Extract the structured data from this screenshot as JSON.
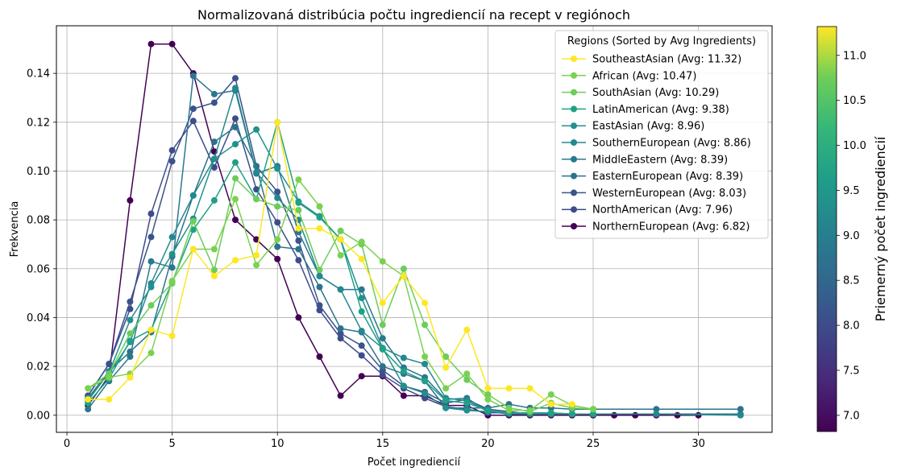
{
  "chart_data": {
    "type": "line",
    "title": "Normalizovaná distribúcia počtu ingrediencií na recept v regiónoch",
    "xlabel": "Počet ingrediencií",
    "ylabel": "Frekvencia",
    "xlim": [
      -0.5,
      33.5
    ],
    "ylim": [
      -0.007,
      0.1595
    ],
    "xticks": [
      0,
      5,
      10,
      15,
      20,
      25,
      30
    ],
    "yticks": [
      0.0,
      0.02,
      0.04,
      0.06,
      0.08,
      0.1,
      0.12,
      0.14
    ],
    "ytick_labels": [
      "0.00",
      "0.02",
      "0.04",
      "0.06",
      "0.08",
      "0.10",
      "0.12",
      "0.14"
    ],
    "grid": true,
    "legend": {
      "title": "Regions (Sorted by Avg Ingredients)",
      "position": "top-right"
    },
    "colorbar": {
      "label": "Priemerný počet ingrediencií",
      "min": 6.82,
      "max": 11.32,
      "ticks": [
        7.0,
        7.5,
        8.0,
        8.5,
        9.0,
        9.5,
        10.0,
        10.5,
        11.0
      ],
      "tick_labels": [
        "7.0",
        "7.5",
        "8.0",
        "8.5",
        "9.0",
        "9.5",
        "10.0",
        "10.5",
        "11.0"
      ],
      "colormap": "viridis"
    },
    "series": [
      {
        "name": "SoutheastAsian (Avg: 11.32)",
        "color": "#fde725",
        "x": [
          1,
          2,
          3,
          4,
          5,
          6,
          7,
          8,
          9,
          10,
          11,
          12,
          13,
          14,
          15,
          16,
          17,
          18,
          19,
          20,
          21,
          22,
          23,
          24
        ],
        "y": [
          0.0065,
          0.0065,
          0.0155,
          0.035,
          0.0325,
          0.068,
          0.057,
          0.0635,
          0.0655,
          0.12,
          0.0765,
          0.0765,
          0.072,
          0.064,
          0.046,
          0.057,
          0.046,
          0.0195,
          0.035,
          0.011,
          0.011,
          0.011,
          0.0045,
          0.0045
        ]
      },
      {
        "name": "African (Avg: 10.47)",
        "color": "#7ad151",
        "x": [
          1,
          2,
          3,
          4,
          5,
          6,
          7,
          8,
          9,
          10,
          11,
          12,
          13,
          14,
          15,
          16,
          17,
          18,
          19,
          20,
          21,
          22,
          23,
          24,
          25
        ],
        "y": [
          0.011,
          0.0155,
          0.017,
          0.0255,
          0.055,
          0.068,
          0.068,
          0.0885,
          0.0615,
          0.072,
          0.0965,
          0.0855,
          0.0655,
          0.071,
          0.063,
          0.057,
          0.024,
          0.011,
          0.017,
          0.0065,
          0.002,
          0.002,
          0.0085,
          0.004,
          0.0025
        ]
      },
      {
        "name": "SouthAsian (Avg: 10.29)",
        "color": "#6ccd5a",
        "x": [
          1,
          2,
          3,
          4,
          5,
          6,
          7,
          8,
          9,
          10,
          11,
          12,
          13,
          14,
          15,
          16,
          17,
          18,
          19,
          20,
          21,
          22,
          23,
          24,
          25
        ],
        "y": [
          0.011,
          0.017,
          0.0335,
          0.045,
          0.054,
          0.0795,
          0.0595,
          0.097,
          0.0885,
          0.0855,
          0.084,
          0.0595,
          0.0755,
          0.07,
          0.037,
          0.06,
          0.037,
          0.024,
          0.0145,
          0.0085,
          0.003,
          0.0015,
          0.005,
          0.003,
          0.0025
        ]
      },
      {
        "name": "LatinAmerican (Avg: 9.38)",
        "color": "#1fa187",
        "x": [
          1,
          2,
          3,
          4,
          5,
          6,
          7,
          8,
          9,
          10,
          11,
          12,
          13,
          14,
          15,
          16,
          17,
          18,
          19,
          20,
          21,
          22,
          23,
          24,
          25
        ],
        "y": [
          0.005,
          0.015,
          0.0305,
          0.035,
          0.0545,
          0.076,
          0.088,
          0.1035,
          0.0885,
          0.12,
          0.087,
          0.081,
          0.072,
          0.0425,
          0.027,
          0.018,
          0.014,
          0.006,
          0.005,
          0.002,
          0.001,
          0.001,
          0.001,
          0.0005,
          0.0005
        ]
      },
      {
        "name": "EastAsian (Avg: 8.96)",
        "color": "#21918c",
        "x": [
          1,
          2,
          3,
          4,
          5,
          6,
          7,
          8,
          9,
          10,
          11,
          12,
          13,
          14,
          15,
          16,
          17,
          18,
          19,
          20,
          21,
          22,
          23,
          24,
          25
        ],
        "y": [
          0.006,
          0.0175,
          0.039,
          0.0525,
          0.066,
          0.0805,
          0.105,
          0.111,
          0.117,
          0.101,
          0.0875,
          0.0815,
          0.072,
          0.048,
          0.0275,
          0.012,
          0.009,
          0.003,
          0.002,
          0.0015,
          0.001,
          0.0005,
          0.0005,
          0.0005,
          0.0005
        ]
      },
      {
        "name": "SouthernEuropean (Avg: 8.86)",
        "color": "#23898e",
        "x": [
          1,
          2,
          3,
          4,
          5,
          6,
          7,
          8,
          9,
          10,
          11,
          12,
          13,
          14,
          15,
          16,
          17,
          18,
          19,
          20,
          21,
          22,
          23,
          24,
          25,
          28,
          32
        ],
        "y": [
          0.007,
          0.017,
          0.03,
          0.054,
          0.073,
          0.09,
          0.105,
          0.134,
          0.0995,
          0.089,
          0.08,
          0.057,
          0.0515,
          0.0345,
          0.0275,
          0.0235,
          0.021,
          0.007,
          0.006,
          0.0015,
          0.001,
          0.001,
          0.001,
          0.0005,
          0.0005,
          0.0005,
          0.0
        ]
      },
      {
        "name": "MiddleEastern (Avg: 8.39)",
        "color": "#2a788e",
        "x": [
          1,
          2,
          3,
          4,
          5,
          6,
          7,
          8,
          9,
          10,
          11,
          12,
          13,
          14,
          15,
          16,
          17,
          18,
          19,
          20,
          21,
          22,
          23,
          24,
          25,
          28,
          32
        ],
        "y": [
          0.0025,
          0.014,
          0.024,
          0.063,
          0.0605,
          0.139,
          0.1315,
          0.133,
          0.099,
          0.102,
          0.075,
          0.057,
          0.0515,
          0.0515,
          0.0315,
          0.0195,
          0.0155,
          0.0065,
          0.007,
          0.0015,
          0.0005,
          0.0005,
          0.0005,
          0.0005,
          0.0005,
          0.0005,
          0.0005
        ]
      },
      {
        "name": "EasternEuropean (Avg: 8.39)",
        "color": "#2c728e",
        "x": [
          1,
          2,
          3,
          4,
          5,
          6,
          7,
          8,
          9,
          10,
          11,
          12,
          13,
          14,
          15,
          16,
          17,
          18,
          19,
          20,
          21,
          22,
          23,
          24,
          25,
          28,
          32
        ],
        "y": [
          0.007,
          0.018,
          0.026,
          0.034,
          0.065,
          0.09,
          0.112,
          0.118,
          0.102,
          0.069,
          0.068,
          0.0525,
          0.0355,
          0.034,
          0.02,
          0.017,
          0.014,
          0.003,
          0.003,
          0.003,
          0.0045,
          0.003,
          0.003,
          0.0025,
          0.0025,
          0.0025,
          0.0025
        ]
      },
      {
        "name": "WesternEuropean (Avg: 8.03)",
        "color": "#3b528b",
        "x": [
          1,
          2,
          3,
          4,
          5,
          6,
          7,
          8,
          9,
          10,
          11,
          12,
          13,
          14,
          15,
          16,
          17,
          18,
          19,
          20,
          21,
          22,
          23,
          24,
          25
        ],
        "y": [
          0.008,
          0.021,
          0.0465,
          0.073,
          0.104,
          0.1255,
          0.128,
          0.138,
          0.102,
          0.0915,
          0.0715,
          0.045,
          0.0335,
          0.0285,
          0.0185,
          0.012,
          0.0095,
          0.005,
          0.0065,
          0.0025,
          0.0015,
          0.0005,
          0.0005,
          0.0005,
          0.0005
        ]
      },
      {
        "name": "NorthAmerican (Avg: 7.96)",
        "color": "#3e4c8a",
        "x": [
          1,
          2,
          3,
          4,
          5,
          6,
          7,
          8,
          9,
          10,
          11,
          12,
          13,
          14,
          15,
          16,
          17,
          18,
          19,
          20,
          21,
          22,
          23,
          24,
          25
        ],
        "y": [
          0.008,
          0.021,
          0.0435,
          0.0825,
          0.1085,
          0.1205,
          0.1015,
          0.1215,
          0.0925,
          0.079,
          0.0635,
          0.043,
          0.0315,
          0.0245,
          0.0165,
          0.011,
          0.007,
          0.0035,
          0.0025,
          0.001,
          0.001,
          0.0005,
          0.0005,
          0.0005,
          0.0005
        ]
      },
      {
        "name": "NorthernEuropean (Avg: 6.82)",
        "color": "#440154",
        "x": [
          1,
          2,
          3,
          4,
          5,
          6,
          7,
          8,
          9,
          10,
          11,
          12,
          13,
          14,
          15,
          16,
          17,
          18,
          19,
          20,
          21,
          22,
          23,
          24,
          25,
          26,
          27,
          28,
          29,
          30
        ],
        "y": [
          0.004,
          0.016,
          0.088,
          0.152,
          0.152,
          0.14,
          0.108,
          0.08,
          0.072,
          0.064,
          0.04,
          0.024,
          0.008,
          0.016,
          0.016,
          0.008,
          0.008,
          0.004,
          0.004,
          0.0,
          0.0,
          0.0,
          0.0,
          0.0,
          0.0,
          0.0,
          0.0,
          0.0,
          0.0,
          0.0
        ]
      }
    ]
  }
}
